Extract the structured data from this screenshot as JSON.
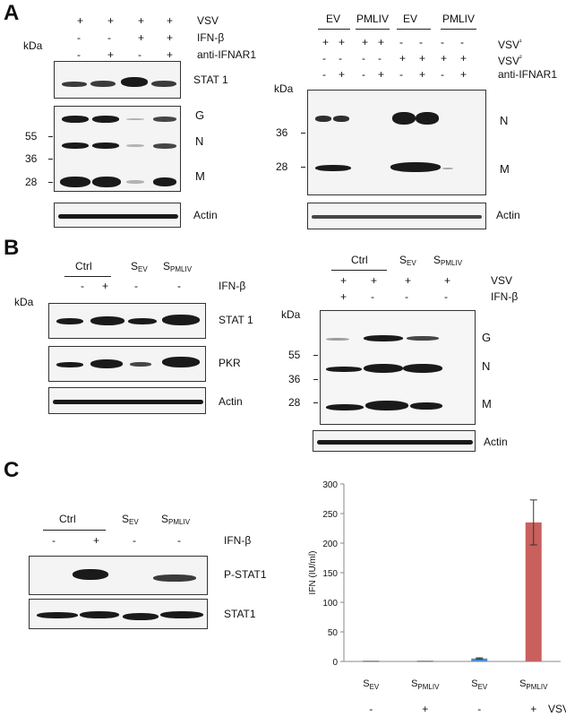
{
  "panels": {
    "a": "A",
    "b": "B",
    "c": "C"
  },
  "kda": "kDa",
  "A_left": {
    "rows": [
      {
        "label": "VSV",
        "signs": [
          "+",
          "+",
          "+",
          "+"
        ]
      },
      {
        "label": "IFN-β",
        "signs": [
          "-",
          "-",
          "+",
          "+"
        ]
      },
      {
        "label": "anti-IFNAR1",
        "signs": [
          "-",
          "+",
          "-",
          "+"
        ]
      }
    ],
    "blot1": "STAT 1",
    "mw": [
      "55",
      "36",
      "28"
    ],
    "bands": [
      "G",
      "N",
      "M"
    ],
    "blot3": "Actin"
  },
  "A_right": {
    "groups": [
      "EV",
      "PMLIV",
      "EV",
      "PMLIV"
    ],
    "rows": [
      {
        "label": "VSV¹",
        "signs": [
          "+",
          "+",
          "+",
          "+",
          "-",
          "-",
          "-",
          "-"
        ]
      },
      {
        "label": "VSV²",
        "signs": [
          "-",
          "-",
          "-",
          "-",
          "+",
          "+",
          "+",
          "+"
        ]
      },
      {
        "label": "anti-IFNAR1",
        "signs": [
          "-",
          "+",
          "-",
          "+",
          "-",
          "+",
          "-",
          "+"
        ]
      }
    ],
    "mw": [
      "36",
      "28"
    ],
    "bands": [
      "N",
      "M"
    ],
    "actin": "Actin"
  },
  "B_left": {
    "groups": {
      "ctrl": "Ctrl",
      "sev": "S",
      "sev_sub": "EV",
      "spml": "S",
      "spml_sub": "PMLIV"
    },
    "row": {
      "label": "IFN-β",
      "signs": [
        "-",
        "+",
        "-",
        "-"
      ]
    },
    "blots": [
      "STAT 1",
      "PKR",
      "Actin"
    ]
  },
  "B_right": {
    "groups": {
      "ctrl": "Ctrl",
      "sev": "S",
      "sev_sub": "EV",
      "spml": "S",
      "spml_sub": "PMLIV"
    },
    "rows": [
      {
        "label": "VSV",
        "signs": [
          "+",
          "+",
          "+",
          "+"
        ]
      },
      {
        "label": "IFN-β",
        "signs": [
          "+",
          "-",
          "-",
          "-"
        ]
      }
    ],
    "mw": [
      "55",
      "36",
      "28"
    ],
    "bands": [
      "G",
      "N",
      "M"
    ],
    "actin": "Actin"
  },
  "C_left": {
    "groups": {
      "ctrl": "Ctrl",
      "sev": "S",
      "sev_sub": "EV",
      "spml": "S",
      "spml_sub": "PMLIV"
    },
    "row": {
      "label": "IFN-β",
      "signs": [
        "-",
        "+",
        "-",
        "-"
      ]
    },
    "blots": [
      "P-STAT1",
      "STAT1"
    ]
  },
  "chart_data": {
    "type": "bar",
    "categories": [
      "SEV (VSV -)",
      "SPMLIV (VSV +)",
      "SEV (VSV -)",
      "SPMLIV (VSV +)"
    ],
    "x_labels": [
      {
        "main": "S",
        "sub": "EV"
      },
      {
        "main": "S",
        "sub": "PMLIV"
      },
      {
        "main": "S",
        "sub": "EV"
      },
      {
        "main": "S",
        "sub": "PMLIV"
      }
    ],
    "vsv": {
      "label": "VSV",
      "signs": [
        "-",
        "+",
        "-",
        "+"
      ]
    },
    "values": [
      1,
      1,
      5,
      235
    ],
    "errors": [
      0,
      0,
      1,
      38
    ],
    "colors": [
      "#555555",
      "#555555",
      "#4f8fc8",
      "#c9605c"
    ],
    "ylabel": "IFN (IU/ml)",
    "ylim": [
      0,
      300
    ],
    "yticks": [
      "0",
      "50",
      "100",
      "150",
      "200",
      "250",
      "300"
    ]
  }
}
